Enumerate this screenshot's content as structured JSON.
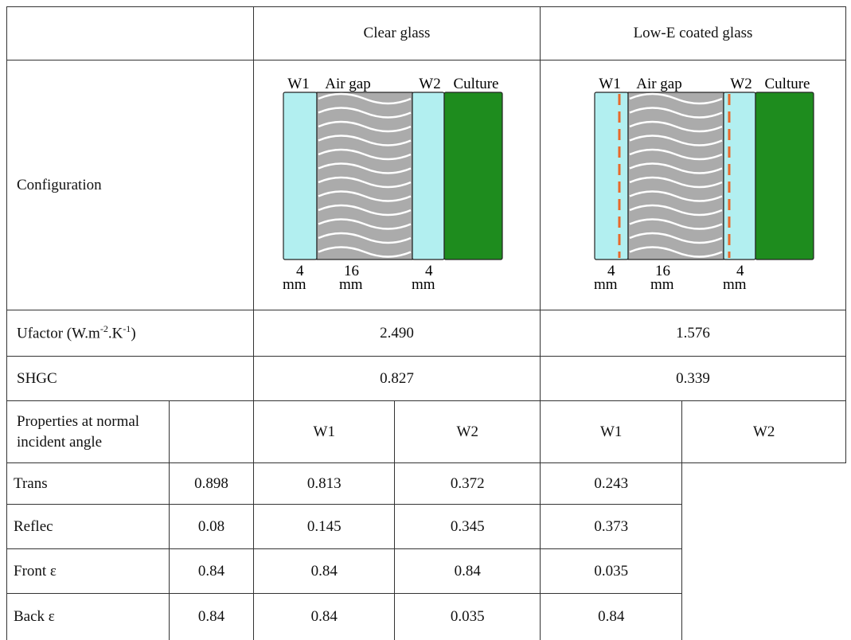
{
  "table": {
    "header": [
      "Clear glass",
      "Low-E coated glass"
    ],
    "configuration": {
      "label": "Configuration",
      "diagrams": [
        {
          "labels": [
            "W1",
            "Air gap",
            "W2",
            "Culture"
          ],
          "thickness": [
            "4",
            "16",
            "4"
          ],
          "unit": "mm"
        },
        {
          "labels": [
            "W1",
            "Air gap",
            "W2",
            "Culture"
          ],
          "thickness": [
            "4",
            "16",
            "4"
          ],
          "unit": "mm"
        }
      ]
    },
    "ufactor": {
      "label": [
        "Ufactor (W.m",
        "-2",
        ".K",
        "-1",
        ")"
      ],
      "values": [
        "2.490",
        "1.576"
      ]
    },
    "shgc": {
      "label": "SHGC",
      "values": [
        "0.827",
        "0.339"
      ]
    },
    "properties": {
      "label": "Properties at normal incident angle",
      "columns": [
        "W1",
        "W2",
        "W1",
        "W2"
      ],
      "rows": [
        [
          "Trans",
          "0.898",
          "0.813",
          "0.372",
          "0.243"
        ],
        [
          "Reflec",
          "0.08",
          "0.145",
          "0.345",
          "0.373"
        ],
        [
          "Front ε",
          "0.84",
          "0.84",
          "0.84",
          "0.035"
        ],
        [
          "Back ε",
          "0.84",
          "0.84",
          "0.035",
          "0.84"
        ]
      ]
    }
  }
}
